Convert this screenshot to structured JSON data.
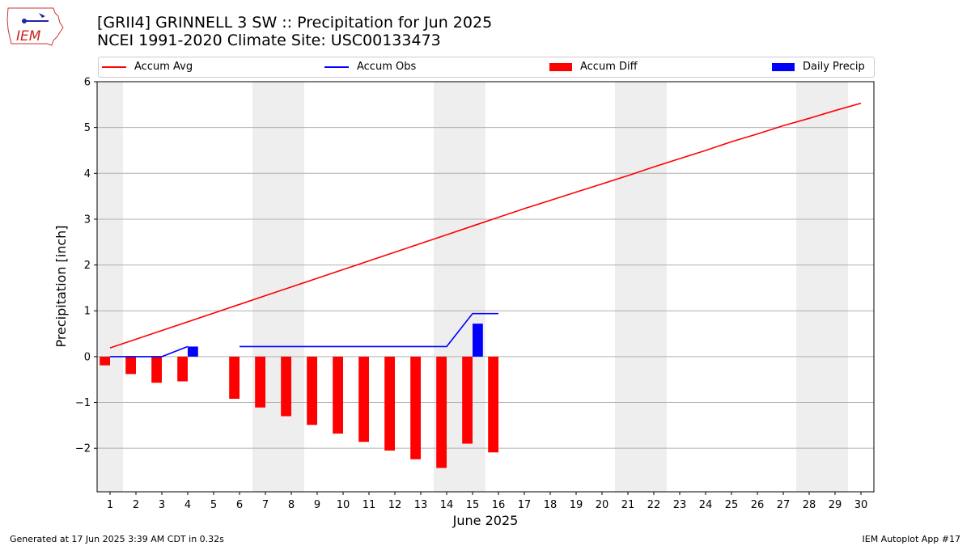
{
  "header": {
    "title_line1": "[GRII4] GRINNELL 3 SW :: Precipitation for Jun 2025",
    "title_line2": "NCEI 1991-2020 Climate Site: USC00133473",
    "logo_text": "IEM"
  },
  "legend": {
    "items": [
      {
        "label": "Accum Avg",
        "color": "#ff0000",
        "kind": "line"
      },
      {
        "label": "Accum Obs",
        "color": "#0000ff",
        "kind": "line"
      },
      {
        "label": "Accum Diff",
        "color": "#ff0000",
        "kind": "box"
      },
      {
        "label": "Daily Precip",
        "color": "#0000ff",
        "kind": "box"
      }
    ]
  },
  "footer": {
    "left": "Generated at 17 Jun 2025 3:39 AM CDT in 0.32s",
    "right": "IEM Autoplot App #17"
  },
  "chart_data": {
    "type": "bar",
    "xlabel": "June 2025",
    "ylabel": "Precipitation [inch]",
    "xlim": [
      0.5,
      30.5
    ],
    "ylim": [
      -2.95,
      6.0
    ],
    "yticks": [
      -2,
      -1,
      0,
      1,
      2,
      3,
      4,
      5,
      6
    ],
    "xticks": [
      1,
      2,
      3,
      4,
      5,
      6,
      7,
      8,
      9,
      10,
      11,
      12,
      13,
      14,
      15,
      16,
      17,
      18,
      19,
      20,
      21,
      22,
      23,
      24,
      25,
      26,
      27,
      28,
      29,
      30
    ],
    "grid": "horizontal",
    "legend_position": "top",
    "weekend_shading": [
      [
        0.5,
        1.5
      ],
      [
        6.5,
        8.5
      ],
      [
        13.5,
        15.5
      ],
      [
        20.5,
        22.5
      ],
      [
        27.5,
        29.5
      ]
    ],
    "series": [
      {
        "name": "Accum Avg",
        "kind": "line",
        "color": "#ff0000",
        "x": [
          1,
          2,
          3,
          4,
          5,
          6,
          7,
          8,
          9,
          10,
          11,
          12,
          13,
          14,
          15,
          16,
          17,
          18,
          19,
          20,
          21,
          22,
          23,
          24,
          25,
          26,
          27,
          28,
          29,
          30
        ],
        "values": [
          0.19,
          0.38,
          0.57,
          0.76,
          0.95,
          1.14,
          1.33,
          1.52,
          1.71,
          1.9,
          2.09,
          2.28,
          2.47,
          2.66,
          2.85,
          3.04,
          3.23,
          3.41,
          3.59,
          3.77,
          3.95,
          4.14,
          4.32,
          4.5,
          4.69,
          4.86,
          5.04,
          5.2,
          5.37,
          5.53
        ]
      },
      {
        "name": "Accum Obs",
        "kind": "line",
        "color": "#0000ff",
        "x": [
          1,
          2,
          3,
          4,
          6,
          7,
          8,
          9,
          10,
          11,
          12,
          13,
          14,
          15,
          16
        ],
        "values": [
          0.0,
          0.0,
          0.0,
          0.22,
          0.22,
          0.22,
          0.22,
          0.22,
          0.22,
          0.22,
          0.22,
          0.22,
          0.22,
          0.94,
          0.94
        ],
        "segments": [
          [
            0,
            3
          ],
          [
            4,
            14
          ]
        ]
      },
      {
        "name": "Accum Diff",
        "kind": "bar",
        "color": "#ff0000",
        "x": [
          1,
          2,
          3,
          4,
          6,
          7,
          8,
          9,
          10,
          11,
          12,
          13,
          14,
          15,
          16
        ],
        "values": [
          -0.19,
          -0.38,
          -0.57,
          -0.54,
          -0.92,
          -1.11,
          -1.3,
          -1.49,
          -1.68,
          -1.86,
          -2.05,
          -2.24,
          -2.43,
          -1.9,
          -2.09
        ]
      },
      {
        "name": "Daily Precip",
        "kind": "bar",
        "color": "#0000ff",
        "x": [
          4,
          15
        ],
        "values": [
          0.22,
          0.72
        ]
      }
    ]
  }
}
